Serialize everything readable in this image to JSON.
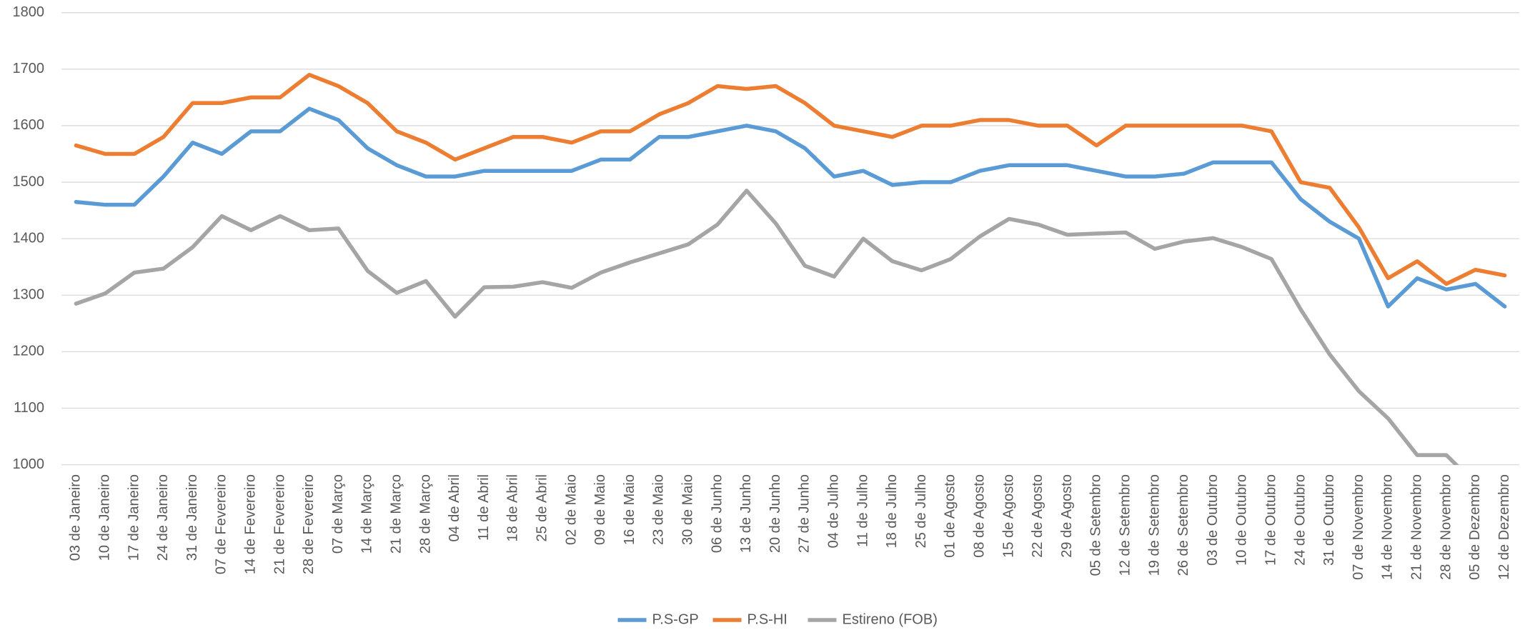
{
  "chart_data": {
    "type": "line",
    "categories": [
      "03 de Janeiro",
      "10 de Janeiro",
      "17 de Janeiro",
      "24 de Janeiro",
      "31 de Janeiro",
      "07 de Fevereiro",
      "14 de Fevereiro",
      "21 de Fevereiro",
      "28 de Fevereiro",
      "07 de Março",
      "14 de Março",
      "21 de Março",
      "28 de Março",
      "04 de Abril",
      "11 de Abril",
      "18 de Abril",
      "25 de Abril",
      "02 de Maio",
      "09 de Maio",
      "16 de Maio",
      "23 de Maio",
      "30 de Maio",
      "06 de Junho",
      "13 de Junho",
      "20 de Junho",
      "27 de Junho",
      "04 de Julho",
      "11 de Julho",
      "18 de Julho",
      "25 de Julho",
      "01 de Agosto",
      "08 de Agosto",
      "15 de Agosto",
      "22 de Agosto",
      "29 de Agosto",
      "05 de Setembro",
      "12 de Setembro",
      "19 de Setembro",
      "26 de Setembro",
      "03 de Outubro",
      "10 de Outubro",
      "17 de Outubro",
      "24 de Outubro",
      "31 de Outubro",
      "07 de Novembro",
      "14 de Novembro",
      "21 de Novembro",
      "28 de Novembro",
      "05 de Dezembro",
      "12 de Dezembro"
    ],
    "series": [
      {
        "name": "P.S-GP",
        "color": "#5b9bd5",
        "values": [
          1465,
          1460,
          1460,
          1510,
          1570,
          1550,
          1590,
          1590,
          1630,
          1610,
          1560,
          1530,
          1510,
          1510,
          1520,
          1520,
          1520,
          1520,
          1540,
          1540,
          1580,
          1580,
          1590,
          1600,
          1590,
          1560,
          1510,
          1520,
          1495,
          1500,
          1500,
          1520,
          1530,
          1530,
          1530,
          1520,
          1510,
          1510,
          1515,
          1535,
          1535,
          1535,
          1470,
          1430,
          1400,
          1280,
          1330,
          1310,
          1320,
          1280
        ]
      },
      {
        "name": "P.S-HI",
        "color": "#ed7d31",
        "values": [
          1565,
          1550,
          1550,
          1580,
          1640,
          1640,
          1650,
          1650,
          1690,
          1670,
          1640,
          1590,
          1570,
          1540,
          1560,
          1580,
          1580,
          1570,
          1590,
          1590,
          1620,
          1640,
          1670,
          1665,
          1670,
          1640,
          1600,
          1590,
          1580,
          1600,
          1600,
          1610,
          1610,
          1600,
          1600,
          1565,
          1600,
          1600,
          1600,
          1600,
          1600,
          1590,
          1500,
          1490,
          1420,
          1330,
          1360,
          1320,
          1345,
          1335
        ]
      },
      {
        "name": "Estireno (FOB)",
        "color": "#a5a5a5",
        "values": [
          1285,
          1303,
          1340,
          1347,
          1385,
          1440,
          1415,
          1440,
          1415,
          1418,
          1343,
          1304,
          1325,
          1262,
          1314,
          1315,
          1323,
          1313,
          1340,
          1358,
          1374,
          1390,
          1425,
          1485,
          1427,
          1352,
          1333,
          1400,
          1360,
          1344,
          1364,
          1404,
          1435,
          1425,
          1407,
          1409,
          1411,
          1382,
          1395,
          1401,
          1385,
          1364,
          1275,
          1195,
          1130,
          1082,
          1017,
          1017,
          966,
          null
        ]
      }
    ],
    "ylim": [
      1000,
      1800
    ],
    "yticks": [
      1000,
      1100,
      1200,
      1300,
      1400,
      1500,
      1600,
      1700,
      1800
    ],
    "grid": true,
    "legend": "bottom"
  }
}
